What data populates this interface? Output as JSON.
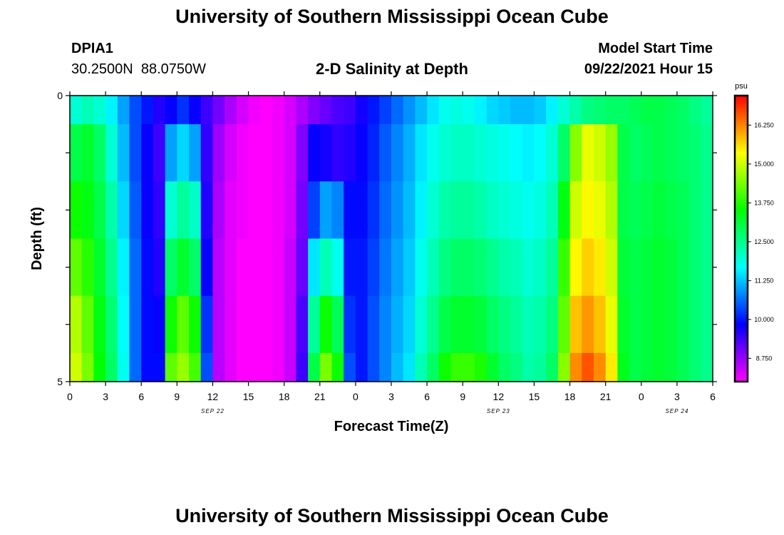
{
  "page": {
    "title": "University of Southern Mississippi Ocean Cube",
    "footer_title": "University of Southern Mississippi Ocean Cube",
    "station_id": "DPIA1",
    "coordinates": "30.2500N  88.0750W",
    "model_start_label": "Model Start Time",
    "model_start_value": "09/22/2021 Hour 15"
  },
  "chart_data": {
    "type": "heatmap",
    "title": "2-D Salinity at Depth",
    "xlabel": "Forecast Time(Z)",
    "ylabel": "Depth (ft)",
    "ylim": [
      0,
      5
    ],
    "y_ticks": [
      {
        "value": 0,
        "label": "0"
      },
      {
        "value": 1,
        "label": ""
      },
      {
        "value": 2,
        "label": ""
      },
      {
        "value": 3,
        "label": ""
      },
      {
        "value": 4,
        "label": ""
      },
      {
        "value": 5,
        "label": "5"
      }
    ],
    "x_range_hours": [
      0,
      54
    ],
    "x_ticks": [
      {
        "hour": 0,
        "label": "0"
      },
      {
        "hour": 3,
        "label": "3"
      },
      {
        "hour": 6,
        "label": "6"
      },
      {
        "hour": 9,
        "label": "9"
      },
      {
        "hour": 12,
        "label": "12"
      },
      {
        "hour": 15,
        "label": "15"
      },
      {
        "hour": 18,
        "label": "18"
      },
      {
        "hour": 21,
        "label": "21"
      },
      {
        "hour": 24,
        "label": "0"
      },
      {
        "hour": 27,
        "label": "3"
      },
      {
        "hour": 30,
        "label": "6"
      },
      {
        "hour": 33,
        "label": "9"
      },
      {
        "hour": 36,
        "label": "12"
      },
      {
        "hour": 39,
        "label": "15"
      },
      {
        "hour": 42,
        "label": "18"
      },
      {
        "hour": 45,
        "label": "21"
      },
      {
        "hour": 48,
        "label": "0"
      },
      {
        "hour": 51,
        "label": "3"
      },
      {
        "hour": 54,
        "label": "6"
      }
    ],
    "date_labels": [
      {
        "hour": 12,
        "label": "SEP 22"
      },
      {
        "hour": 36,
        "label": "SEP 23"
      },
      {
        "hour": 51,
        "label": "SEP 24"
      }
    ],
    "colorbar": {
      "unit": "psu",
      "min": 8.0,
      "max": 17.2,
      "ticks": [
        8.75,
        10.0,
        11.25,
        12.5,
        13.75,
        15.0,
        16.25
      ],
      "tick_labels": [
        "8.750",
        "10.000",
        "11.250",
        "12.500",
        "13.750",
        "15.000",
        "16.250"
      ]
    },
    "depth_layers": [
      "0-0.5",
      "0.5-1.5",
      "1.5-2.5",
      "2.5-3.5",
      "3.5-4.5",
      "4.5-5"
    ],
    "column_hours": [
      0,
      1,
      2,
      3,
      4,
      5,
      6,
      7,
      8,
      9,
      10,
      11,
      12,
      13,
      14,
      15,
      16,
      17,
      18,
      19,
      20,
      21,
      22,
      23,
      24,
      25,
      26,
      27,
      28,
      29,
      30,
      31,
      32,
      33,
      34,
      35,
      36,
      37,
      38,
      39,
      40,
      41,
      42,
      43,
      44,
      45,
      46,
      47,
      48,
      49,
      50,
      51,
      52,
      53
    ],
    "values": [
      [
        12.0,
        12.2,
        12.0,
        11.6,
        11.0,
        10.4,
        10.0,
        9.6,
        9.8,
        10.2,
        9.8,
        9.4,
        9.0,
        8.6,
        8.3,
        8.1,
        8.0,
        8.1,
        8.3,
        8.6,
        8.9,
        9.1,
        9.3,
        9.4,
        9.7,
        10.0,
        10.3,
        10.6,
        10.9,
        11.2,
        11.5,
        11.8,
        11.9,
        11.8,
        11.6,
        11.4,
        11.3,
        11.2,
        11.2,
        11.3,
        11.6,
        12.0,
        12.3,
        12.6,
        12.7,
        12.8,
        12.8,
        12.9,
        13.0,
        13.0,
        12.9,
        12.8,
        12.6,
        12.4
      ],
      [
        13.0,
        13.2,
        12.8,
        12.0,
        11.2,
        10.4,
        9.8,
        9.4,
        11.0,
        11.4,
        11.0,
        9.5,
        8.7,
        8.3,
        8.1,
        8.0,
        8.0,
        8.1,
        8.3,
        8.9,
        9.8,
        9.7,
        9.5,
        9.6,
        9.8,
        10.1,
        10.5,
        10.8,
        11.1,
        11.5,
        11.8,
        12.0,
        12.1,
        12.1,
        12.0,
        11.9,
        11.8,
        11.7,
        11.6,
        11.7,
        12.0,
        12.8,
        14.5,
        15.2,
        15.0,
        14.6,
        13.0,
        12.8,
        12.9,
        13.0,
        12.9,
        12.8,
        12.7,
        12.5
      ],
      [
        13.6,
        13.4,
        13.0,
        12.3,
        11.4,
        10.5,
        9.8,
        9.5,
        12.0,
        12.4,
        12.1,
        9.6,
        8.6,
        8.2,
        8.1,
        8.0,
        8.0,
        8.1,
        8.3,
        9.0,
        10.3,
        11.0,
        10.8,
        9.9,
        9.9,
        10.2,
        10.6,
        10.9,
        11.2,
        11.6,
        12.0,
        12.3,
        12.4,
        12.4,
        12.3,
        12.1,
        12.0,
        11.9,
        11.8,
        11.9,
        12.2,
        13.4,
        15.0,
        15.4,
        15.2,
        14.8,
        13.0,
        12.9,
        13.0,
        13.1,
        13.0,
        12.9,
        12.7,
        12.5
      ],
      [
        14.2,
        13.8,
        13.2,
        12.5,
        11.6,
        10.6,
        9.9,
        9.6,
        12.8,
        13.2,
        12.8,
        9.8,
        8.5,
        8.2,
        8.0,
        8.0,
        8.0,
        8.1,
        8.4,
        9.1,
        11.5,
        12.2,
        11.8,
        10.0,
        10.0,
        10.3,
        10.7,
        11.0,
        11.3,
        11.8,
        12.2,
        12.6,
        12.8,
        12.8,
        12.7,
        12.5,
        12.3,
        12.2,
        12.0,
        12.1,
        12.4,
        13.9,
        15.4,
        15.7,
        15.5,
        15.0,
        13.1,
        13.0,
        13.1,
        13.2,
        13.1,
        12.9,
        12.7,
        12.5
      ],
      [
        14.8,
        14.2,
        13.4,
        12.7,
        11.7,
        10.6,
        9.9,
        9.8,
        13.6,
        14.2,
        13.6,
        10.2,
        8.5,
        8.2,
        8.0,
        8.0,
        8.0,
        8.1,
        8.4,
        9.3,
        12.4,
        13.6,
        12.9,
        10.2,
        10.0,
        10.4,
        10.8,
        11.1,
        11.4,
        12.0,
        12.5,
        13.0,
        13.2,
        13.2,
        13.1,
        12.8,
        12.6,
        12.4,
        12.2,
        12.3,
        12.6,
        14.2,
        15.8,
        16.1,
        15.8,
        15.2,
        13.2,
        13.0,
        13.1,
        13.2,
        13.1,
        12.9,
        12.7,
        12.5
      ],
      [
        15.0,
        14.4,
        13.5,
        12.8,
        11.8,
        10.6,
        9.9,
        9.9,
        14.2,
        14.6,
        14.0,
        10.4,
        8.5,
        8.2,
        8.0,
        8.0,
        8.0,
        8.1,
        8.4,
        9.4,
        13.0,
        14.4,
        13.6,
        10.4,
        10.0,
        10.4,
        10.8,
        11.2,
        11.5,
        12.2,
        12.8,
        13.6,
        13.9,
        13.9,
        13.7,
        13.2,
        12.8,
        12.6,
        12.3,
        12.4,
        12.8,
        14.5,
        16.2,
        16.6,
        16.2,
        15.5,
        13.3,
        13.0,
        13.1,
        13.2,
        13.1,
        12.9,
        12.7,
        12.5
      ]
    ]
  }
}
